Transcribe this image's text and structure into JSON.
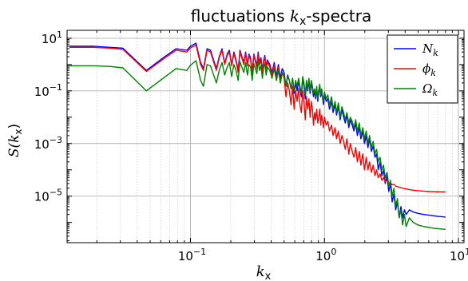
{
  "chart_data": {
    "type": "line",
    "title": {
      "prefix": "fluctuations ",
      "var": "k",
      "sub": "x",
      "suffix": "-spectra"
    },
    "xlabel": {
      "var": "k",
      "sub": "x"
    },
    "ylabel": {
      "var": "S(k",
      "sub": "x",
      "close": ")"
    },
    "xscale": "log",
    "yscale": "log",
    "xlim": [
      0.012,
      11.0
    ],
    "ylim": [
      1.7e-07,
      20.0
    ],
    "grid": true,
    "legend_position": "top-right",
    "x_ticks": [
      {
        "value": 0.1,
        "base": "10",
        "exp": "−1"
      },
      {
        "value": 1.0,
        "base": "10",
        "exp": "0"
      },
      {
        "value": 10.0,
        "base": "10",
        "exp": "1"
      }
    ],
    "y_ticks": [
      {
        "value": 10.0,
        "base": "10",
        "exp": "1"
      },
      {
        "value": 0.1,
        "base": "10",
        "exp": "−1"
      },
      {
        "value": 0.001,
        "base": "10",
        "exp": "−3"
      },
      {
        "value": 1e-05,
        "base": "10",
        "exp": "−5"
      }
    ],
    "series": [
      {
        "name": "N",
        "name_sub": "k",
        "color": "#0000ff",
        "x": [
          0.0125,
          0.0188,
          0.025,
          0.0313,
          0.0469,
          0.0625,
          0.078,
          0.094,
          0.1,
          0.11,
          0.119,
          0.125,
          0.133,
          0.141,
          0.156,
          0.164,
          0.172,
          0.18,
          0.188,
          0.195,
          0.203,
          0.211,
          0.219,
          0.227,
          0.234,
          0.242,
          0.25,
          0.258,
          0.266,
          0.273,
          0.281,
          0.289,
          0.297,
          0.305,
          0.313,
          0.32,
          0.328,
          0.336,
          0.344,
          0.352,
          0.359,
          0.367,
          0.375,
          0.391,
          0.406,
          0.422,
          0.438,
          0.453,
          0.469,
          0.484,
          0.5,
          0.516,
          0.531,
          0.547,
          0.563,
          0.578,
          0.594,
          0.609,
          0.625,
          0.641,
          0.656,
          0.672,
          0.688,
          0.703,
          0.719,
          0.734,
          0.75,
          0.766,
          0.781,
          0.797,
          0.813,
          0.828,
          0.844,
          0.859,
          0.875,
          0.891,
          0.906,
          0.922,
          0.938,
          0.953,
          0.969,
          0.984,
          1.0,
          1.03,
          1.06,
          1.09,
          1.13,
          1.16,
          1.2,
          1.23,
          1.27,
          1.31,
          1.35,
          1.39,
          1.43,
          1.47,
          1.52,
          1.56,
          1.61,
          1.66,
          1.71,
          1.76,
          1.82,
          1.87,
          1.93,
          1.99,
          2.05,
          2.11,
          2.17,
          2.24,
          2.31,
          2.38,
          2.45,
          2.52,
          2.6,
          2.68,
          2.76,
          2.84,
          2.93,
          3.02,
          3.11,
          3.2,
          3.3,
          3.4,
          3.5,
          3.61,
          3.72,
          3.83,
          3.95,
          4.07,
          4.3,
          4.6,
          5.0,
          5.5,
          6.0,
          6.5,
          7.0,
          7.5,
          8.0
        ],
        "y": [
          5.0,
          5.0,
          4.5,
          4.2,
          0.6,
          1.8,
          4.0,
          3.5,
          5.0,
          6.5,
          1.2,
          0.7,
          4.0,
          3.5,
          0.7,
          2.0,
          4.0,
          1.1,
          2.5,
          3.5,
          1.0,
          3.0,
          1.5,
          0.6,
          3.5,
          2.0,
          1.2,
          3.0,
          1.0,
          2.5,
          1.8,
          0.5,
          2.5,
          1.5,
          0.9,
          3.0,
          1.2,
          1.8,
          0.6,
          1.5,
          2.2,
          0.8,
          1.5,
          1.0,
          0.5,
          1.2,
          0.35,
          1.0,
          0.3,
          0.7,
          0.5,
          0.15,
          0.4,
          0.25,
          0.12,
          0.3,
          0.08,
          0.2,
          0.1,
          0.25,
          0.12,
          0.06,
          0.3,
          0.15,
          0.05,
          0.2,
          0.1,
          0.25,
          0.08,
          0.2,
          0.12,
          0.06,
          0.1,
          0.05,
          0.12,
          0.04,
          0.08,
          0.15,
          0.06,
          0.1,
          0.05,
          0.03,
          0.07,
          0.04,
          0.05,
          0.02,
          0.04,
          0.015,
          0.03,
          0.012,
          0.025,
          0.008,
          0.02,
          0.01,
          0.006,
          0.012,
          0.004,
          0.008,
          0.005,
          0.003,
          0.006,
          0.002,
          0.004,
          0.0015,
          0.003,
          0.001,
          0.002,
          0.0007,
          0.0015,
          0.0005,
          0.0008,
          0.0003,
          0.0004,
          0.0001,
          0.0002,
          6e-05,
          0.0001,
          3e-05,
          6e-05,
          1.5e-05,
          3e-05,
          6e-06,
          1.2e-05,
          3e-06,
          6e-06,
          1.5e-06,
          4e-06,
          1.5e-06,
          3e-06,
          2e-06,
          3e-06,
          2.5e-06,
          2.2e-06,
          2e-06,
          1.9e-06,
          1.8e-06,
          1.7e-06,
          1.65e-06,
          1.6e-06
        ]
      },
      {
        "name": "ϕ",
        "name_sub": "k",
        "color": "#ff0000",
        "x": [
          0.0125,
          0.0188,
          0.025,
          0.0313,
          0.0469,
          0.0625,
          0.078,
          0.094,
          0.1,
          0.11,
          0.119,
          0.125,
          0.133,
          0.141,
          0.156,
          0.164,
          0.172,
          0.18,
          0.188,
          0.195,
          0.203,
          0.211,
          0.219,
          0.227,
          0.234,
          0.242,
          0.25,
          0.258,
          0.266,
          0.273,
          0.281,
          0.289,
          0.297,
          0.305,
          0.313,
          0.32,
          0.328,
          0.336,
          0.344,
          0.352,
          0.359,
          0.367,
          0.375,
          0.391,
          0.406,
          0.422,
          0.438,
          0.453,
          0.469,
          0.484,
          0.5,
          0.516,
          0.531,
          0.547,
          0.563,
          0.578,
          0.594,
          0.609,
          0.625,
          0.641,
          0.656,
          0.672,
          0.688,
          0.703,
          0.719,
          0.734,
          0.75,
          0.766,
          0.781,
          0.797,
          0.813,
          0.828,
          0.844,
          0.859,
          0.875,
          0.891,
          0.906,
          0.922,
          0.938,
          0.953,
          0.969,
          0.984,
          1.0,
          1.03,
          1.06,
          1.09,
          1.13,
          1.16,
          1.2,
          1.23,
          1.27,
          1.31,
          1.35,
          1.39,
          1.43,
          1.47,
          1.52,
          1.56,
          1.61,
          1.66,
          1.71,
          1.76,
          1.82,
          1.87,
          1.93,
          1.99,
          2.05,
          2.11,
          2.17,
          2.24,
          2.31,
          2.38,
          2.45,
          2.52,
          2.6,
          2.68,
          2.76,
          2.84,
          2.93,
          3.02,
          3.11,
          3.2,
          3.3,
          3.4,
          3.5,
          3.7,
          4.0,
          4.5,
          5.0,
          5.5,
          6.0,
          6.5,
          7.0,
          7.5,
          8.0
        ],
        "y": [
          4.5,
          4.5,
          4.2,
          3.8,
          0.55,
          1.6,
          3.5,
          3.0,
          4.3,
          5.5,
          1.0,
          0.6,
          3.5,
          3.0,
          0.6,
          1.8,
          3.5,
          1.0,
          2.2,
          3.0,
          0.9,
          2.6,
          1.3,
          0.5,
          3.0,
          1.8,
          1.0,
          2.6,
          0.9,
          2.2,
          1.5,
          0.4,
          2.2,
          1.3,
          0.7,
          2.6,
          1.0,
          1.5,
          0.5,
          1.3,
          1.9,
          0.6,
          1.3,
          0.8,
          0.4,
          1.0,
          0.25,
          0.8,
          0.2,
          0.5,
          0.3,
          0.06,
          0.2,
          0.1,
          0.03,
          0.15,
          0.02,
          0.1,
          0.04,
          0.12,
          0.03,
          0.015,
          0.1,
          0.04,
          0.008,
          0.06,
          0.02,
          0.05,
          0.01,
          0.04,
          0.02,
          0.005,
          0.015,
          0.008,
          0.02,
          0.006,
          0.01,
          0.02,
          0.005,
          0.012,
          0.007,
          0.004,
          0.01,
          0.005,
          0.007,
          0.003,
          0.005,
          0.002,
          0.004,
          0.0015,
          0.003,
          0.001,
          0.002,
          0.0012,
          0.0006,
          0.0015,
          0.0004,
          0.001,
          0.0005,
          0.0003,
          0.0007,
          0.0002,
          0.0005,
          0.00015,
          0.0004,
          0.0001,
          0.0003,
          0.0001,
          0.0002,
          8e-05,
          0.00015,
          6e-05,
          0.0001,
          5e-05,
          7e-05,
          4e-05,
          5e-05,
          3.5e-05,
          4e-05,
          3e-05,
          3.2e-05,
          2.7e-05,
          2.8e-05,
          2.4e-05,
          2.3e-05,
          2.1e-05,
          1.9e-05,
          1.7e-05,
          1.6e-05,
          1.55e-05,
          1.5e-05,
          1.48e-05,
          1.46e-05,
          1.45e-05,
          1.45e-05
        ]
      },
      {
        "name": "Ω",
        "name_sub": "k",
        "color": "#008000",
        "x": [
          0.0125,
          0.0188,
          0.025,
          0.0313,
          0.0469,
          0.0625,
          0.078,
          0.094,
          0.1,
          0.11,
          0.119,
          0.125,
          0.133,
          0.141,
          0.156,
          0.164,
          0.172,
          0.18,
          0.188,
          0.195,
          0.203,
          0.211,
          0.219,
          0.227,
          0.234,
          0.242,
          0.25,
          0.258,
          0.266,
          0.273,
          0.281,
          0.289,
          0.297,
          0.305,
          0.313,
          0.32,
          0.328,
          0.336,
          0.344,
          0.352,
          0.359,
          0.367,
          0.375,
          0.391,
          0.406,
          0.422,
          0.438,
          0.453,
          0.469,
          0.484,
          0.5,
          0.516,
          0.531,
          0.547,
          0.563,
          0.578,
          0.594,
          0.609,
          0.625,
          0.641,
          0.656,
          0.672,
          0.688,
          0.703,
          0.719,
          0.734,
          0.75,
          0.766,
          0.781,
          0.797,
          0.813,
          0.828,
          0.844,
          0.859,
          0.875,
          0.891,
          0.906,
          0.922,
          0.938,
          0.953,
          0.969,
          0.984,
          1.0,
          1.03,
          1.06,
          1.09,
          1.13,
          1.16,
          1.2,
          1.23,
          1.27,
          1.31,
          1.35,
          1.39,
          1.43,
          1.47,
          1.52,
          1.56,
          1.61,
          1.66,
          1.71,
          1.76,
          1.82,
          1.87,
          1.93,
          1.99,
          2.05,
          2.11,
          2.17,
          2.24,
          2.31,
          2.38,
          2.45,
          2.52,
          2.6,
          2.68,
          2.76,
          2.84,
          2.93,
          3.02,
          3.11,
          3.2,
          3.3,
          3.4,
          3.5,
          3.61,
          3.72,
          3.83,
          3.95,
          4.07,
          4.3,
          4.6,
          5.0,
          5.5,
          6.0,
          6.5,
          7.0,
          7.5,
          8.0
        ],
        "y": [
          0.9,
          0.9,
          0.85,
          0.75,
          0.1,
          0.3,
          0.7,
          0.6,
          0.95,
          1.4,
          0.25,
          0.15,
          1.0,
          0.9,
          0.2,
          0.6,
          1.2,
          0.4,
          0.8,
          1.2,
          0.35,
          1.0,
          0.6,
          0.25,
          1.3,
          0.8,
          0.5,
          1.2,
          0.4,
          1.0,
          0.8,
          0.25,
          1.1,
          0.7,
          0.45,
          1.5,
          0.6,
          0.9,
          0.3,
          0.8,
          1.1,
          0.4,
          0.8,
          0.6,
          0.3,
          0.7,
          0.25,
          0.6,
          0.2,
          0.5,
          0.4,
          0.15,
          0.35,
          0.25,
          0.12,
          0.3,
          0.1,
          0.25,
          0.15,
          0.3,
          0.15,
          0.08,
          0.35,
          0.2,
          0.07,
          0.25,
          0.12,
          0.3,
          0.1,
          0.25,
          0.15,
          0.08,
          0.12,
          0.06,
          0.15,
          0.05,
          0.1,
          0.18,
          0.07,
          0.12,
          0.06,
          0.04,
          0.09,
          0.05,
          0.07,
          0.03,
          0.06,
          0.02,
          0.04,
          0.015,
          0.035,
          0.01,
          0.025,
          0.015,
          0.008,
          0.015,
          0.006,
          0.01,
          0.007,
          0.004,
          0.008,
          0.003,
          0.006,
          0.002,
          0.004,
          0.0015,
          0.003,
          0.001,
          0.002,
          0.0007,
          0.0012,
          0.0004,
          0.0006,
          0.0002,
          0.0003,
          0.0001,
          0.00015,
          5e-05,
          8e-05,
          2.5e-05,
          4e-05,
          1e-05,
          2e-05,
          4e-06,
          8e-06,
          1.5e-06,
          3e-06,
          8e-07,
          2e-06,
          7e-07,
          1.5e-06,
          1e-06,
          8e-07,
          7e-07,
          6.5e-07,
          6e-07,
          5.8e-07,
          5.6e-07,
          5.5e-07
        ]
      }
    ]
  }
}
